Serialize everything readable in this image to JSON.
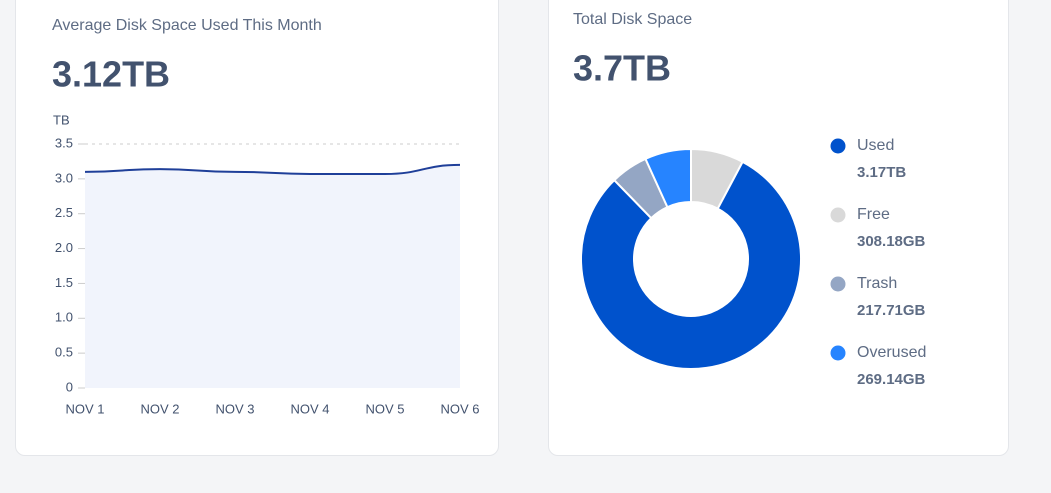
{
  "chart_data": [
    {
      "type": "area",
      "title": "Average Disk Space Used This Month",
      "subtitle": "3.12TB",
      "y_label": "TB",
      "categories": [
        "NOV 1",
        "NOV 2",
        "NOV 3",
        "NOV 4",
        "NOV 5",
        "NOV 6"
      ],
      "series": [
        {
          "name": "Used",
          "color": "#1f3f99",
          "values": [
            3.1,
            3.14,
            3.1,
            3.07,
            3.07,
            3.2
          ]
        }
      ],
      "ylim": [
        0,
        3.5
      ],
      "yticks": [
        0,
        0.5,
        {
          "value": 1,
          "label": "1.0"
        },
        1.5,
        {
          "value": 2,
          "label": "2.0"
        },
        2.5,
        {
          "value": 3,
          "label": "3.0"
        },
        3.5
      ]
    },
    {
      "type": "donut",
      "title": "Total Disk Space",
      "subtitle": "3.7TB",
      "categories": [
        "Free",
        "Used",
        "Trash",
        "Overused"
      ],
      "values": [
        308.18,
        3170,
        217.71,
        269.14
      ],
      "value_labels": [
        "308.18GB",
        "3.17TB",
        "217.71GB",
        "269.14GB"
      ],
      "colors": [
        "#d9d9d9",
        "#0052cc",
        "#94a6c4",
        "#2684ff"
      ],
      "legend_order": [
        1,
        0,
        2,
        3
      ]
    }
  ]
}
